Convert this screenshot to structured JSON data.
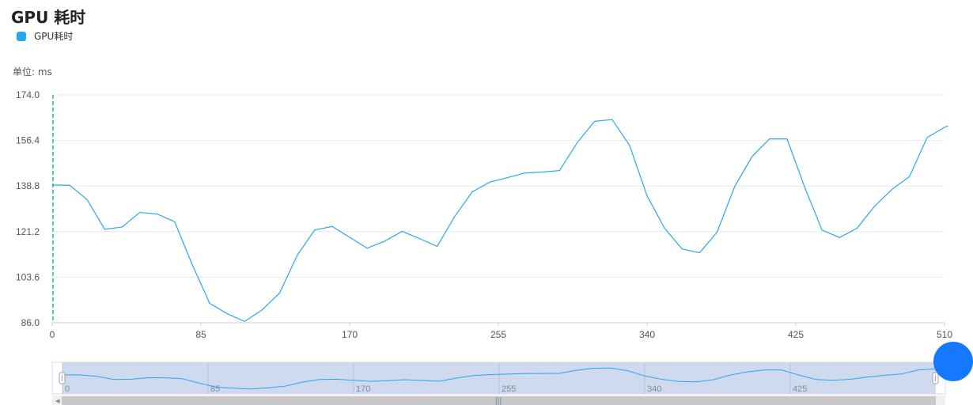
{
  "chart_data": {
    "type": "line",
    "title": "GPU 耗时",
    "ylabel": "单位: ms",
    "legend": [
      "GPU耗时"
    ],
    "legend_position": "top-left",
    "grid": true,
    "ylim": [
      86.0,
      174.0
    ],
    "y_ticks": [
      "174.0",
      "156.4",
      "138.8",
      "121.2",
      "103.6",
      "86.0"
    ],
    "xlim": [
      0,
      512
    ],
    "x_ticks": [
      "0",
      "85",
      "170",
      "255",
      "340",
      "425",
      "510"
    ],
    "series": [
      {
        "name": "GPU耗时",
        "color": "#29a6f0",
        "x": [
          0,
          10,
          20,
          30,
          40,
          50,
          60,
          70,
          80,
          90,
          100,
          110,
          120,
          130,
          140,
          150,
          160,
          170,
          180,
          190,
          200,
          210,
          220,
          230,
          240,
          250,
          260,
          270,
          280,
          290,
          300,
          310,
          320,
          330,
          340,
          350,
          360,
          370,
          380,
          390,
          400,
          410,
          420,
          430,
          440,
          450,
          460,
          470,
          480,
          490,
          500,
          510,
          512
        ],
        "values": [
          139.2,
          139.1,
          133.5,
          122.1,
          123.0,
          128.6,
          128.0,
          125.0,
          108.5,
          93.5,
          89.5,
          86.5,
          91.0,
          97.5,
          112.0,
          121.8,
          123.2,
          119.0,
          114.8,
          117.5,
          121.3,
          118.5,
          115.5,
          127.0,
          136.5,
          140.3,
          142.0,
          143.8,
          144.2,
          144.8,
          155.5,
          163.8,
          164.5,
          154.5,
          135.0,
          122.5,
          114.5,
          113.0,
          121.0,
          138.5,
          150.2,
          157.0,
          157.0,
          138.5,
          121.8,
          118.9,
          122.5,
          131.0,
          137.5,
          142.5,
          157.5,
          161.5,
          162.0
        ]
      }
    ],
    "zoom_slider": {
      "x_ticks": [
        "0",
        "85",
        "170",
        "255",
        "340",
        "425"
      ],
      "scroll_grip": "|||"
    }
  },
  "ui": {
    "title": "GPU 耗时",
    "legend_label": "GPU耗时",
    "unit_label": "单位: ms",
    "accent": "#29a6f0"
  }
}
